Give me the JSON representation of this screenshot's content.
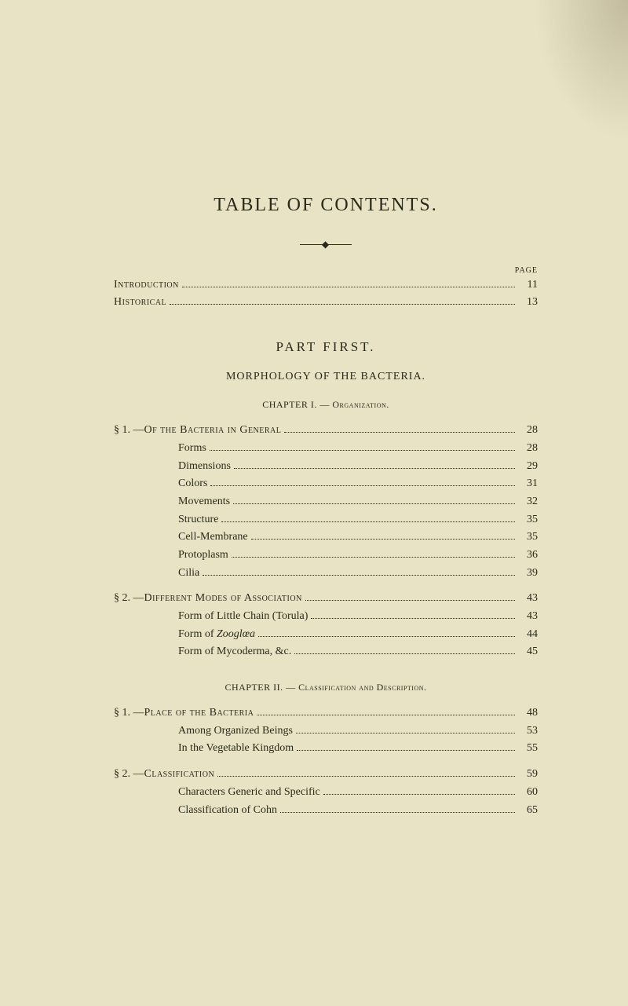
{
  "title": "TABLE OF CONTENTS.",
  "page_label": "PAGE",
  "top_entries": [
    {
      "label": "Introduction",
      "page": "11"
    },
    {
      "label": "Historical",
      "page": "13"
    }
  ],
  "part_heading": "PART FIRST.",
  "subject_heading": "MORPHOLOGY OF THE BACTERIA.",
  "chapter1": {
    "heading": "CHAPTER I. — Organization.",
    "sections": [
      {
        "prefix": "§ 1. — ",
        "label": "Of the Bacteria in General",
        "page": "28",
        "items": [
          {
            "label": "Forms",
            "page": "28"
          },
          {
            "label": "Dimensions",
            "page": "29"
          },
          {
            "label": "Colors",
            "page": "31"
          },
          {
            "label": "Movements",
            "page": "32"
          },
          {
            "label": "Structure",
            "page": "35"
          },
          {
            "label": "Cell-Membrane",
            "page": "35"
          },
          {
            "label": "Protoplasm",
            "page": "36"
          },
          {
            "label": "Cilia",
            "page": "39"
          }
        ]
      },
      {
        "prefix": "§ 2. — ",
        "label": "Different Modes of Association",
        "page": "43",
        "items": [
          {
            "label": "Form of Little Chain (Torula)",
            "page": "43"
          },
          {
            "label_pre": "Form of ",
            "label_italic": "Zooglœa",
            "page": "44"
          },
          {
            "label": "Form of Mycoderma, &c.",
            "page": "45"
          }
        ]
      }
    ]
  },
  "chapter2": {
    "heading": "CHAPTER II. — Classification and Description.",
    "sections": [
      {
        "prefix": "§ 1. — ",
        "label": "Place of the Bacteria",
        "page": "48",
        "items": [
          {
            "label": "Among Organized Beings",
            "page": "53"
          },
          {
            "label": "In the Vegetable Kingdom",
            "page": "55"
          }
        ]
      },
      {
        "prefix": "§ 2. — ",
        "label": "Classification",
        "page": "59",
        "items": [
          {
            "label": "Characters Generic and Specific",
            "page": "60"
          },
          {
            "label": "Classification of Cohn",
            "page": "65"
          }
        ]
      }
    ]
  }
}
